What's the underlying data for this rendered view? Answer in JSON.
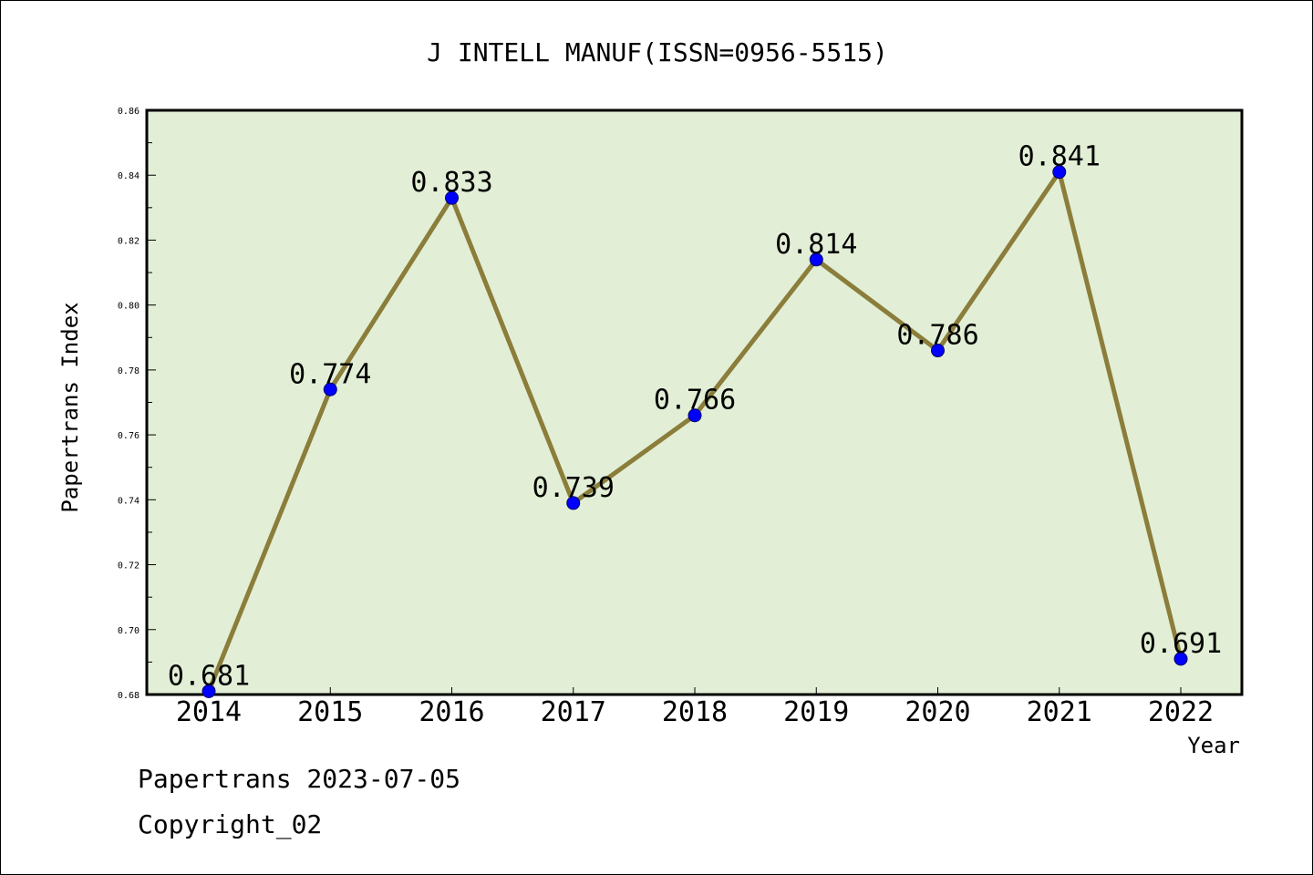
{
  "chart_data": {
    "type": "line",
    "title": "J INTELL MANUF(ISSN=0956-5515)",
    "xlabel": "Year",
    "ylabel": "Papertrans Index",
    "categories": [
      "2014",
      "2015",
      "2016",
      "2017",
      "2018",
      "2019",
      "2020",
      "2021",
      "2022"
    ],
    "series": [
      {
        "values": [
          0.681,
          0.774,
          0.833,
          0.739,
          0.766,
          0.814,
          0.786,
          0.841,
          0.691
        ],
        "labels": [
          "0.681",
          "0.774",
          "0.833",
          "0.739",
          "0.766",
          "0.814",
          "0.786",
          "0.841",
          "0.691"
        ]
      }
    ],
    "ylim": [
      0.68,
      0.86
    ],
    "yticks": [
      "0.68",
      "0.70",
      "0.72",
      "0.74",
      "0.76",
      "0.78",
      "0.80",
      "0.82",
      "0.84",
      "0.86"
    ],
    "grid": false,
    "colors": {
      "plot_background": "#e2efd6",
      "line": "#8b7d3a",
      "marker": "#0000ff"
    }
  },
  "footer": {
    "line1": "Papertrans 2023-07-05",
    "line2": "Copyright_02"
  }
}
